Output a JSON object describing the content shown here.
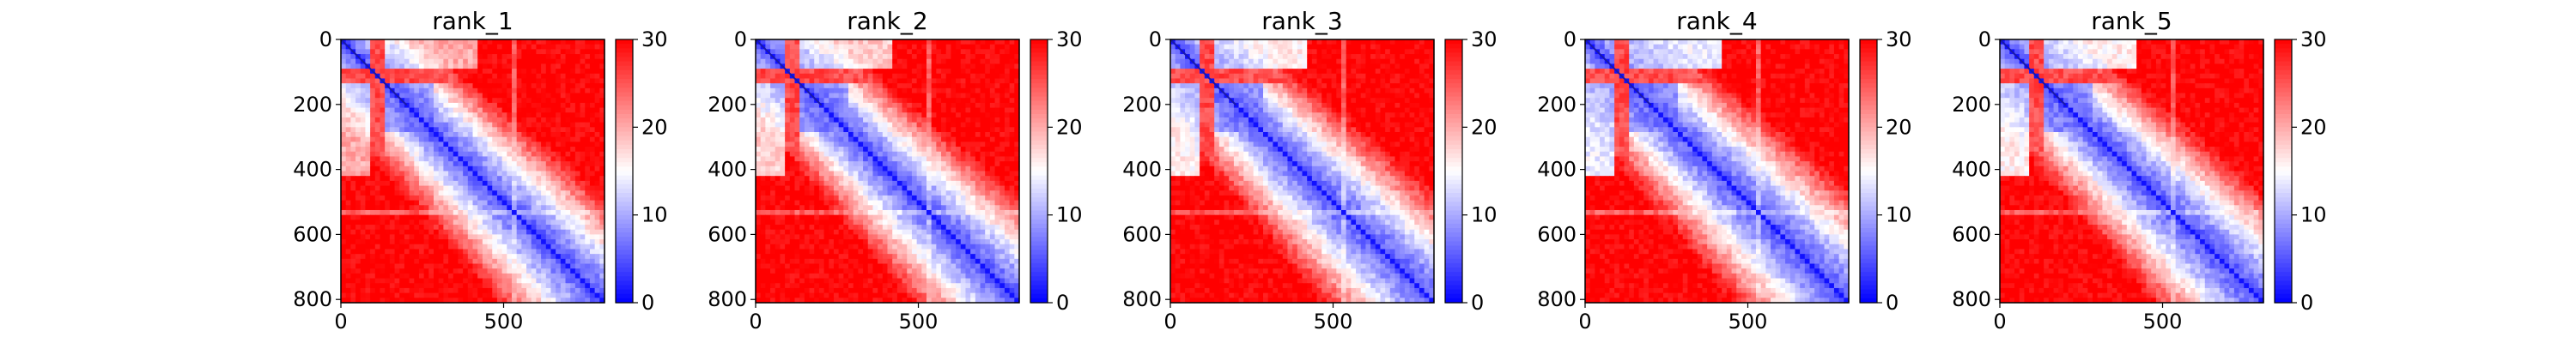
{
  "chart_data": [
    {
      "type": "heatmap",
      "title": "rank_1",
      "x_ticks": [
        0,
        500
      ],
      "y_ticks": [
        0,
        200,
        400,
        600,
        800
      ],
      "x_range": [
        0,
        810
      ],
      "y_range": [
        0,
        810
      ],
      "colorbar": {
        "ticks": [
          0,
          10,
          20,
          30
        ],
        "range": [
          0,
          30
        ],
        "colors": [
          "#0000ff",
          "#ffffff",
          "#ff0000"
        ]
      },
      "pattern": {
        "band_extent": 230,
        "near_distance": 5,
        "bg_far": 30,
        "secondary_band_strength": 0.5
      }
    },
    {
      "type": "heatmap",
      "title": "rank_2",
      "x_ticks": [
        0,
        500
      ],
      "y_ticks": [
        0,
        200,
        400,
        600,
        800
      ],
      "x_range": [
        0,
        810
      ],
      "y_range": [
        0,
        810
      ],
      "colorbar": {
        "ticks": [
          0,
          10,
          20,
          30
        ],
        "range": [
          0,
          30
        ],
        "colors": [
          "#0000ff",
          "#ffffff",
          "#ff0000"
        ]
      },
      "pattern": {
        "band_extent": 230,
        "near_distance": 5,
        "bg_far": 30,
        "secondary_band_strength": 0.6
      }
    },
    {
      "type": "heatmap",
      "title": "rank_3",
      "x_ticks": [
        0,
        500
      ],
      "y_ticks": [
        0,
        200,
        400,
        600,
        800
      ],
      "x_range": [
        0,
        810
      ],
      "y_range": [
        0,
        810
      ],
      "colorbar": {
        "ticks": [
          0,
          10,
          20,
          30
        ],
        "range": [
          0,
          30
        ],
        "colors": [
          "#0000ff",
          "#ffffff",
          "#ff0000"
        ]
      },
      "pattern": {
        "band_extent": 240,
        "near_distance": 5,
        "bg_far": 30,
        "secondary_band_strength": 0.7
      }
    },
    {
      "type": "heatmap",
      "title": "rank_4",
      "x_ticks": [
        0,
        500
      ],
      "y_ticks": [
        0,
        200,
        400,
        600,
        800
      ],
      "x_range": [
        0,
        810
      ],
      "y_range": [
        0,
        810
      ],
      "colorbar": {
        "ticks": [
          0,
          10,
          20,
          30
        ],
        "range": [
          0,
          30
        ],
        "colors": [
          "#0000ff",
          "#ffffff",
          "#ff0000"
        ]
      },
      "pattern": {
        "band_extent": 250,
        "near_distance": 5,
        "bg_far": 30,
        "secondary_band_strength": 0.8
      }
    },
    {
      "type": "heatmap",
      "title": "rank_5",
      "x_ticks": [
        0,
        500
      ],
      "y_ticks": [
        0,
        200,
        400,
        600,
        800
      ],
      "x_range": [
        0,
        810
      ],
      "y_range": [
        0,
        810
      ],
      "colorbar": {
        "ticks": [
          0,
          10,
          20,
          30
        ],
        "range": [
          0,
          30
        ],
        "colors": [
          "#0000ff",
          "#ffffff",
          "#ff0000"
        ]
      },
      "pattern": {
        "band_extent": 240,
        "near_distance": 5,
        "bg_far": 30,
        "secondary_band_strength": 0.7
      }
    }
  ]
}
